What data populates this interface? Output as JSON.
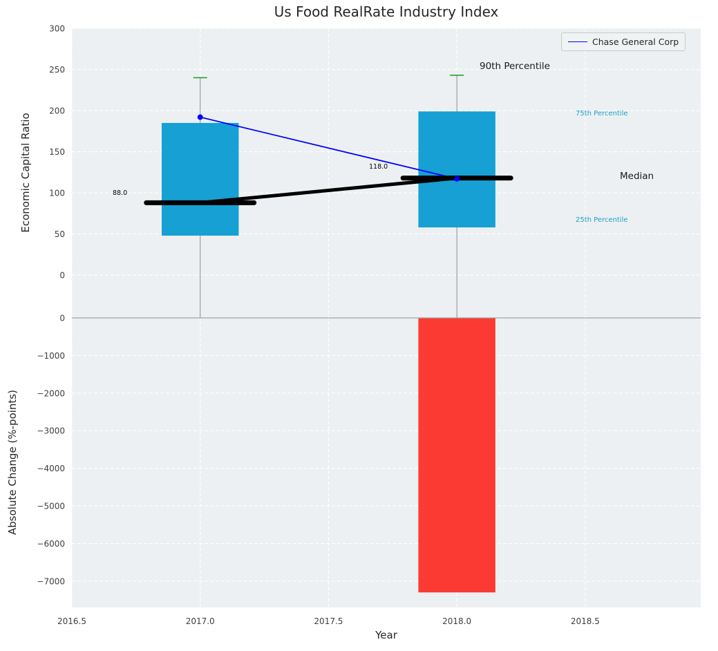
{
  "title": "Us Food RealRate Industry Index",
  "axis_labels": {
    "top_y": "Economic Capital Ratio",
    "bottom_y": "Absolute Change (%-points)",
    "x": "Year"
  },
  "legend": {
    "items": [
      {
        "label": "Chase General Corp",
        "color": "#0000ff"
      }
    ]
  },
  "annotations": {
    "p90": "90th Percentile",
    "p75": "75th Percentile",
    "median": "Median",
    "p25": "25th Percentile"
  },
  "chart_data": [
    {
      "type": "box",
      "subplot": "top",
      "title": "Us Food RealRate Industry Index",
      "ylabel": "Economic Capital Ratio",
      "xlabel": "Year",
      "grid": true,
      "legend_position": "upper right",
      "xlim": [
        2016.5,
        2018.95
      ],
      "ylim": [
        -52,
        300
      ],
      "xticks": [
        2016.5,
        2017.0,
        2017.5,
        2018.0,
        2018.5
      ],
      "yticks": [
        0,
        50,
        100,
        150,
        200,
        250,
        300
      ],
      "boxes": [
        {
          "x": 2017,
          "p25": 48,
          "median": 88,
          "p75": 185,
          "p90": 240,
          "median_label": "88.0"
        },
        {
          "x": 2018,
          "p25": 58,
          "median": 118,
          "p75": 199,
          "p90": 243,
          "median_label": "118.0"
        }
      ],
      "series": [
        {
          "id": "median-trend",
          "name": "Median",
          "x": [
            2017,
            2018
          ],
          "values": [
            88,
            118
          ],
          "color": "#000000",
          "linewidth": 5,
          "marker": false
        },
        {
          "id": "company",
          "name": "Chase General Corp",
          "x": [
            2017,
            2018
          ],
          "values": [
            192,
            117
          ],
          "color": "#0000ff",
          "linewidth": 1.8,
          "marker": true
        }
      ]
    },
    {
      "type": "bar",
      "subplot": "bottom",
      "ylabel": "Absolute Change (%-points)",
      "xlabel": "Year",
      "grid": true,
      "xlim": [
        2016.5,
        2018.95
      ],
      "ylim": [
        -7700,
        0
      ],
      "yticks": [
        0,
        -1000,
        -2000,
        -3000,
        -4000,
        -5000,
        -6000,
        -7000
      ],
      "categories": [
        2018
      ],
      "values": [
        -7300
      ],
      "color": "#fa3a33"
    }
  ],
  "style": {
    "axes_bg": "#ecf0f2",
    "grid": "#ffffff",
    "box": "#16a0d4",
    "cap": "#27a127",
    "median": "#000000",
    "whisker": "#8a8a8a",
    "boundary": "#a3a3a3",
    "tick": "#3d3d3d",
    "percentile_text": "#1f9fc6"
  }
}
